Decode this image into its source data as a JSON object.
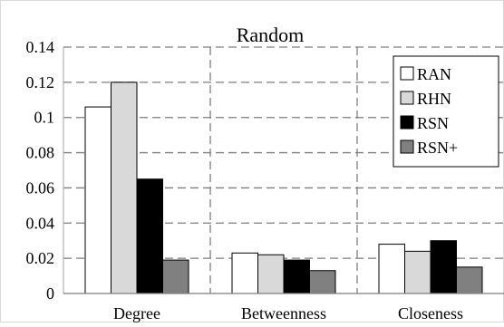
{
  "chart_data": {
    "type": "bar",
    "title": "Random",
    "xlabel": "",
    "ylabel": "",
    "categories": [
      "Degree",
      "Betweenness",
      "Closeness"
    ],
    "ylim": [
      0,
      0.14
    ],
    "yticks": [
      "0",
      "0.02",
      "0.04",
      "0.06",
      "0.08",
      "0.1",
      "0.12",
      "0.14"
    ],
    "ytick_values": [
      0,
      0.02,
      0.04,
      0.06,
      0.08,
      0.1,
      0.12,
      0.14
    ],
    "grid": "dashed, horizontal and vertical",
    "legend_position": "top-right",
    "series": [
      {
        "name": "RAN",
        "color": "#ffffff",
        "values": [
          0.106,
          0.023,
          0.028
        ]
      },
      {
        "name": "RHN",
        "color": "#d9d9d9",
        "values": [
          0.12,
          0.022,
          0.024
        ]
      },
      {
        "name": "RSN",
        "color": "#000000",
        "values": [
          0.065,
          0.019,
          0.03
        ]
      },
      {
        "name": "RSN+",
        "color": "#808080",
        "values": [
          0.019,
          0.013,
          0.015
        ]
      }
    ]
  }
}
